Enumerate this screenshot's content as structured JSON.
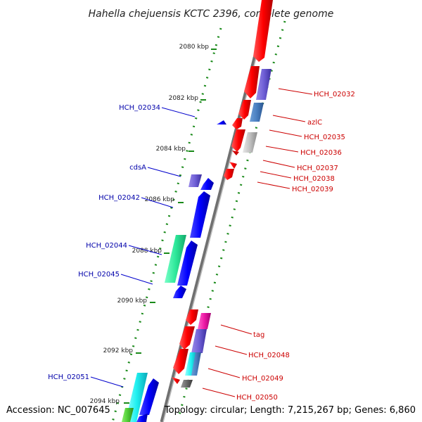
{
  "title": "Hahella chejuensis KCTC 2396, complete genome",
  "footer": {
    "accession": "Accession: NC_007645",
    "summary": "Topology: circular; Length: 7,215,267 bp; Genes: 6,860"
  },
  "colors": {
    "forward_strand": "#ff0000",
    "reverse_strand": "#0000ff",
    "backbone": "#808080",
    "tick": "#1a8a1a",
    "label_forward": "#cc0000",
    "label_reverse": "#0000aa"
  },
  "ticks": [
    "2080 kbp",
    "2082 kbp",
    "2084 kbp",
    "2086 kbp",
    "2088 kbp",
    "2090 kbp",
    "2092 kbp",
    "2094 kbp"
  ],
  "labels_forward": [
    "HCH_02032",
    "azlC",
    "HCH_02035",
    "HCH_02036",
    "HCH_02037",
    "HCH_02038",
    "HCH_02039",
    "tag",
    "HCH_02048",
    "HCH_02049",
    "HCH_02050"
  ],
  "labels_reverse": [
    "HCH_02034",
    "cdsA",
    "HCH_02042",
    "HCH_02044",
    "HCH_02045",
    "HCH_02051"
  ]
}
